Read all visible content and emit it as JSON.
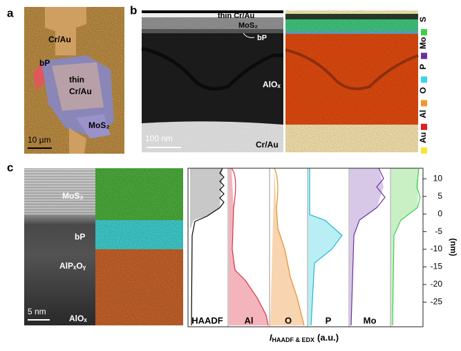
{
  "panel_a": {
    "label": "a",
    "top": "Cr/Au",
    "left": "bP",
    "center": [
      "thin",
      "Cr/Au"
    ],
    "bottom": "MoS₂",
    "scale_bar": "10 µm"
  },
  "panel_b": {
    "label": "b",
    "layers": [
      "thin Cr/Au",
      "MoS₂",
      "bP",
      "AlOₓ",
      "Cr/Au"
    ],
    "scale_bar": "100 nm",
    "legend": [
      {
        "name": "S",
        "color": "#3ecf4a"
      },
      {
        "name": "Mo",
        "color": "#6a2fa0"
      },
      {
        "name": "P",
        "color": "#37d6e8"
      },
      {
        "name": "O",
        "color": "#f0962a"
      },
      {
        "name": "Al",
        "color": "#e02020"
      },
      {
        "name": "Au",
        "color": "#f5e63a"
      }
    ]
  },
  "panel_c": {
    "label": "c",
    "layers": [
      "MoS₂",
      "bP",
      "AlPₓOᵧ",
      "AlOₓ"
    ],
    "scale_bar": "5 nm",
    "profile": {
      "columns": [
        "HAADF",
        "Al",
        "O",
        "P",
        "Mo"
      ],
      "ylim": [
        -32,
        13
      ],
      "yticks": [
        10,
        5,
        0,
        -5,
        -10,
        -15,
        -20,
        -25
      ],
      "y_label": "(nm)",
      "x_label": {
        "symbol": "I",
        "subscript": "HAADF & EDX",
        "unit": "(a.u.)"
      }
    }
  }
}
